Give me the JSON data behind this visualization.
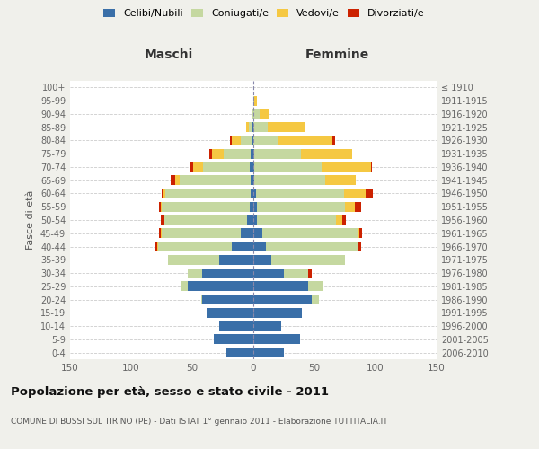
{
  "age_groups": [
    "0-4",
    "5-9",
    "10-14",
    "15-19",
    "20-24",
    "25-29",
    "30-34",
    "35-39",
    "40-44",
    "45-49",
    "50-54",
    "55-59",
    "60-64",
    "65-69",
    "70-74",
    "75-79",
    "80-84",
    "85-89",
    "90-94",
    "95-99",
    "100+"
  ],
  "birth_years": [
    "2006-2010",
    "2001-2005",
    "1996-2000",
    "1991-1995",
    "1986-1990",
    "1981-1985",
    "1976-1980",
    "1971-1975",
    "1966-1970",
    "1961-1965",
    "1956-1960",
    "1951-1955",
    "1946-1950",
    "1941-1945",
    "1936-1940",
    "1931-1935",
    "1926-1930",
    "1921-1925",
    "1916-1920",
    "1911-1915",
    "≤ 1910"
  ],
  "males": {
    "celibi": [
      22,
      32,
      28,
      38,
      42,
      54,
      42,
      28,
      18,
      10,
      5,
      3,
      2,
      2,
      3,
      2,
      1,
      1,
      0,
      0,
      0
    ],
    "coniugati": [
      0,
      0,
      0,
      0,
      1,
      5,
      12,
      42,
      60,
      65,
      68,
      72,
      70,
      58,
      38,
      22,
      9,
      3,
      1,
      0,
      0
    ],
    "vedovi": [
      0,
      0,
      0,
      0,
      0,
      0,
      0,
      0,
      1,
      1,
      0,
      1,
      2,
      4,
      8,
      10,
      8,
      2,
      0,
      0,
      0
    ],
    "divorziati": [
      0,
      0,
      0,
      0,
      0,
      0,
      0,
      0,
      1,
      1,
      3,
      1,
      1,
      4,
      3,
      2,
      1,
      0,
      0,
      0,
      0
    ]
  },
  "females": {
    "nubili": [
      25,
      38,
      23,
      40,
      48,
      45,
      25,
      15,
      10,
      7,
      3,
      3,
      2,
      1,
      1,
      1,
      0,
      0,
      0,
      0,
      0
    ],
    "coniugate": [
      0,
      0,
      0,
      0,
      6,
      12,
      20,
      60,
      75,
      78,
      65,
      72,
      72,
      58,
      55,
      38,
      20,
      12,
      5,
      1,
      0
    ],
    "vedove": [
      0,
      0,
      0,
      0,
      0,
      0,
      0,
      0,
      1,
      2,
      5,
      8,
      18,
      25,
      40,
      42,
      45,
      30,
      8,
      2,
      0
    ],
    "divorziate": [
      0,
      0,
      0,
      0,
      0,
      0,
      3,
      0,
      2,
      2,
      3,
      5,
      6,
      0,
      1,
      0,
      2,
      0,
      0,
      0,
      0
    ]
  },
  "colors": {
    "celibi_nubili": "#3a6fa8",
    "coniugati": "#c5d8a0",
    "vedovi": "#f5c842",
    "divorziati": "#cc2200"
  },
  "xlim": 150,
  "title": "Popolazione per età, sesso e stato civile - 2011",
  "subtitle": "COMUNE DI BUSSI SUL TIRINO (PE) - Dati ISTAT 1° gennaio 2011 - Elaborazione TUTTITALIA.IT",
  "ylabel": "Fasce di età",
  "xlabel_left": "Maschi",
  "xlabel_right": "Femmine",
  "bg_color": "#f0f0eb",
  "plot_bg": "#ffffff"
}
